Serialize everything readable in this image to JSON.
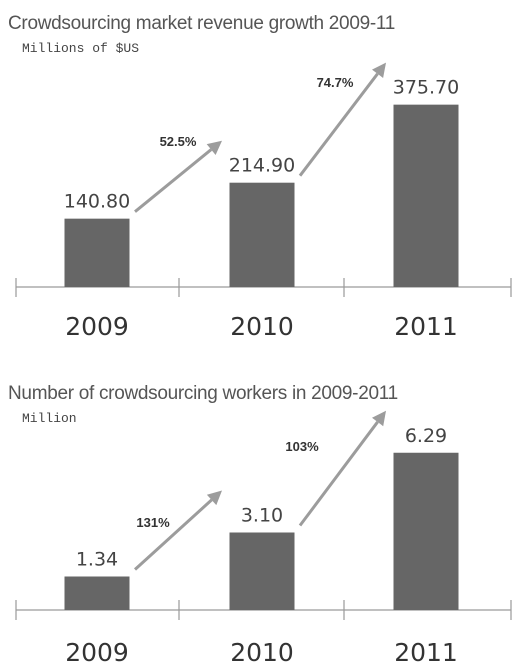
{
  "chart_data": [
    {
      "type": "bar",
      "title": "Crowdsourcing market revenue growth 2009-11",
      "unit": "Millions of $US",
      "categories": [
        "2009",
        "2010",
        "2011"
      ],
      "values": [
        140.8,
        214.9,
        375.7
      ],
      "value_labels": [
        "140.80",
        "214.90",
        "375.70"
      ],
      "growth_labels": [
        "52.5%",
        "74.7%"
      ],
      "ylim": [
        0,
        410
      ],
      "grid": false,
      "colors": {
        "bar": "#666666",
        "arrow": "#9c9c9c"
      }
    },
    {
      "type": "bar",
      "title": "Number of crowdsourcing workers in 2009-2011",
      "unit": "Million",
      "categories": [
        "2009",
        "2010",
        "2011"
      ],
      "values": [
        1.34,
        3.1,
        6.29
      ],
      "value_labels": [
        "1.34",
        "3.10",
        "6.29"
      ],
      "growth_labels": [
        "131%",
        "103%"
      ],
      "ylim": [
        0,
        7.6
      ],
      "grid": false,
      "colors": {
        "bar": "#666666",
        "arrow": "#9c9c9c"
      }
    }
  ]
}
